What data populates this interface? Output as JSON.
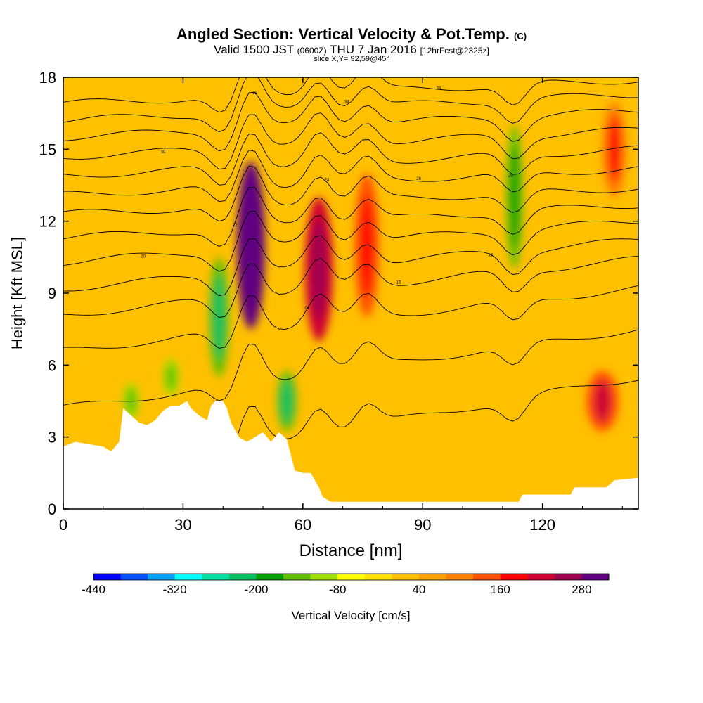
{
  "header": {
    "title": "Angled Section: Vertical Velocity & Pot.Temp.",
    "title_unit": "(C)",
    "valid_main": "Valid 1500 JST",
    "valid_utc": "(0600Z)",
    "valid_date": "THU 7 Jan 2016",
    "forecast": "[12hrFcst@2325z]",
    "slice": "slice X,Y= 92,59@45°"
  },
  "chart_data": {
    "type": "heatmap",
    "xlabel": "Distance [nm]",
    "ylabel": "Height [Kft MSL]",
    "xlim": [
      0,
      144
    ],
    "ylim": [
      0,
      18
    ],
    "xticks": [
      0,
      30,
      60,
      90,
      120
    ],
    "yticks": [
      0,
      3,
      6,
      9,
      12,
      15,
      18
    ],
    "colorbar": {
      "label": "Vertical Velocity [cm/s]",
      "ticks": [
        "-440",
        "-320",
        "-200",
        "-80",
        "40",
        "160",
        "280"
      ],
      "bin_edges": [
        -440,
        -400,
        -360,
        -320,
        -280,
        -240,
        -200,
        -160,
        -120,
        -80,
        -40,
        0,
        40,
        80,
        120,
        160,
        200,
        240,
        280,
        320
      ],
      "colors": [
        "#0000ff",
        "#0050ff",
        "#00a0ff",
        "#00ffff",
        "#00e0a0",
        "#00c060",
        "#00a000",
        "#60c000",
        "#a0e000",
        "#ffff00",
        "#ffe000",
        "#ffc000",
        "#ffa000",
        "#ff8000",
        "#ff5000",
        "#ff0000",
        "#d00030",
        "#a00050",
        "#600080"
      ]
    },
    "terrain_kft": [
      [
        0,
        2.6
      ],
      [
        3,
        2.8
      ],
      [
        10,
        2.6
      ],
      [
        12,
        2.4
      ],
      [
        14,
        2.8
      ],
      [
        15,
        4.2
      ],
      [
        17,
        3.9
      ],
      [
        19,
        3.6
      ],
      [
        21,
        3.5
      ],
      [
        23,
        3.7
      ],
      [
        25,
        4.1
      ],
      [
        27,
        4.3
      ],
      [
        29,
        4.3
      ],
      [
        31,
        4.5
      ],
      [
        32,
        4.2
      ],
      [
        34,
        3.9
      ],
      [
        36,
        3.7
      ],
      [
        37,
        4.3
      ],
      [
        38,
        4.5
      ],
      [
        40,
        4.5
      ],
      [
        41,
        4.2
      ],
      [
        42,
        3.6
      ],
      [
        44,
        3.0
      ],
      [
        46,
        2.8
      ],
      [
        48,
        3.0
      ],
      [
        50,
        3.2
      ],
      [
        52,
        2.8
      ],
      [
        54,
        3.2
      ],
      [
        56,
        2.9
      ],
      [
        58,
        1.6
      ],
      [
        60,
        1.5
      ],
      [
        62,
        1.5
      ],
      [
        64,
        0.9
      ],
      [
        65,
        0.5
      ],
      [
        67,
        0.3
      ],
      [
        70,
        0.3
      ],
      [
        90,
        0.3
      ],
      [
        100,
        0.3
      ],
      [
        114,
        0.3
      ],
      [
        115,
        0.6
      ],
      [
        127,
        0.6
      ],
      [
        128,
        0.9
      ],
      [
        136,
        0.9
      ],
      [
        138,
        1.2
      ],
      [
        144,
        1.3
      ]
    ],
    "theta_contours": [
      {
        "label": "10",
        "level": 10,
        "y0": 1.2,
        "y1": 5.5
      },
      {
        "label": "12",
        "level": 12,
        "y0": 4.2,
        "y1": 7.5
      },
      {
        "label": "14",
        "level": 14,
        "y0": 6.6,
        "y1": 9.2
      },
      {
        "label": "16",
        "level": 16,
        "y0": 8.1,
        "y1": 10.4
      },
      {
        "label": "18",
        "level": 18,
        "y0": 9.2,
        "y1": 11.2
      },
      {
        "label": "20",
        "level": 20,
        "y0": 10.3,
        "y1": 12.0
      },
      {
        "label": "22",
        "level": 22,
        "y0": 11.3,
        "y1": 12.7
      },
      {
        "label": "24",
        "level": 24,
        "y0": 12.3,
        "y1": 13.4
      },
      {
        "label": "26",
        "level": 26,
        "y0": 13.1,
        "y1": 14.2
      },
      {
        "label": "28",
        "level": 28,
        "y0": 13.9,
        "y1": 15.0
      },
      {
        "label": "30",
        "level": 30,
        "y0": 14.7,
        "y1": 15.8
      },
      {
        "label": "32",
        "level": 32,
        "y0": 15.5,
        "y1": 16.6
      },
      {
        "label": "34",
        "level": 34,
        "y0": 16.2,
        "y1": 17.3
      },
      {
        "label": "36",
        "level": 36,
        "y0": 16.9,
        "y1": 17.9
      }
    ],
    "velocity_features": [
      {
        "name": "updraft",
        "x": 47,
        "y": 11,
        "w": 3.5,
        "h": 7,
        "value": 300
      },
      {
        "name": "updraft",
        "x": 64,
        "y": 10,
        "w": 3.5,
        "h": 6,
        "value": 200
      },
      {
        "name": "updraft",
        "x": 76,
        "y": 11,
        "w": 3,
        "h": 6,
        "value": 120
      },
      {
        "name": "updraft",
        "x": 135,
        "y": 4.5,
        "w": 4,
        "h": 2.5,
        "value": 140
      },
      {
        "name": "updraft",
        "x": 138,
        "y": 15,
        "w": 3,
        "h": 4,
        "value": 110
      },
      {
        "name": "downdraft",
        "x": 39,
        "y": 8,
        "w": 2.5,
        "h": 5,
        "value": -160
      },
      {
        "name": "downdraft",
        "x": 56,
        "y": 4.5,
        "w": 2.5,
        "h": 2.5,
        "value": -160
      },
      {
        "name": "downdraft",
        "x": 113,
        "y": 13,
        "w": 2,
        "h": 6,
        "value": -140
      },
      {
        "name": "downdraft",
        "x": 17,
        "y": 4.5,
        "w": 2,
        "h": 1.5,
        "value": -100
      },
      {
        "name": "downdraft",
        "x": 27,
        "y": 5.5,
        "w": 2,
        "h": 1.5,
        "value": -100
      }
    ]
  }
}
